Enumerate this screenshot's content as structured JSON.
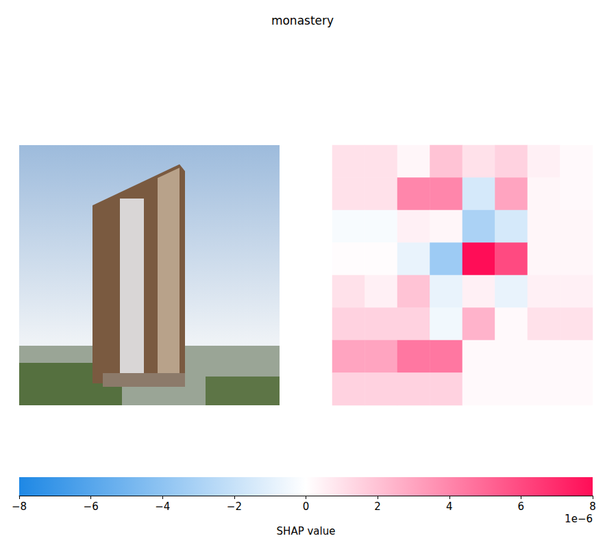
{
  "chart_data": {
    "type": "heatmap",
    "title": "monastery",
    "tick_labels": false,
    "cells": [
      [
        1,
        1,
        0.3,
        2,
        1,
        1.5,
        0.5,
        0.2
      ],
      [
        1,
        1,
        4,
        4,
        -1.5,
        3,
        0.3,
        0.2
      ],
      [
        -0.3,
        -0.3,
        0.5,
        0.3,
        -3,
        -1.5,
        0.3,
        0.3
      ],
      [
        0.1,
        0.1,
        -0.8,
        -3.5,
        8,
        6,
        0.3,
        0.3
      ],
      [
        1,
        0.5,
        2,
        -0.8,
        0.5,
        -0.8,
        0.5,
        0.5
      ],
      [
        1.5,
        1.5,
        1.5,
        -0.5,
        2.5,
        0.2,
        1,
        1
      ],
      [
        3,
        3,
        4.5,
        4.5,
        0.2,
        0.2,
        0.2,
        0.2
      ],
      [
        1.5,
        1.5,
        1.5,
        1.5,
        0.2,
        0.2,
        0.2,
        0.2
      ]
    ],
    "colorbar": {
      "range": [
        -8,
        8
      ],
      "ticks": [
        {
          "value": -8,
          "label": "−8"
        },
        {
          "value": -6,
          "label": "−6"
        },
        {
          "value": -4,
          "label": "−4"
        },
        {
          "value": -2,
          "label": "−2"
        },
        0,
        2,
        4,
        6,
        8
      ],
      "label": "SHAP value",
      "multiplier": "1e−6"
    }
  }
}
